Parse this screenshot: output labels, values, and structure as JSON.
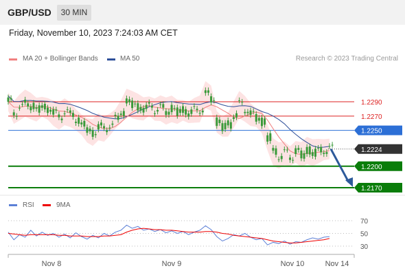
{
  "header": {
    "symbol": "GBP/USD",
    "timeframe": "30 MIN"
  },
  "datetime": "Friday, November 10, 2023 7:24:03 AM CET",
  "legend": {
    "ma20_label": "MA 20 + Bollinger Bands",
    "ma50_label": "MA 50",
    "credit": "Research © 2023 Trading Central"
  },
  "colors": {
    "ma20": "#f08080",
    "ma50": "#2e4f99",
    "bollinger_fill": "#fde0e0",
    "support": "#0a7d0a",
    "resistance_red": "#d22",
    "pivot_blue": "#2c6fd6",
    "current_label": "#333",
    "rsi": "#5b7fd6",
    "rsi_ma": "#e00",
    "arrow": "#2d5a9a",
    "candle": "#3a9a3a"
  },
  "chart_data": {
    "type": "candlestick",
    "symbol": "GBP/USD",
    "price_levels": [
      {
        "value": "1.2290",
        "kind": "resistance"
      },
      {
        "value": "1.2270",
        "kind": "resistance"
      },
      {
        "value": "1.2250",
        "kind": "pivot"
      },
      {
        "value": "1.2224",
        "kind": "current"
      },
      {
        "value": "1.2200",
        "kind": "support"
      },
      {
        "value": "1.2170",
        "kind": "support"
      }
    ],
    "ylim": [
      1.216,
      1.231
    ],
    "x_labels": [
      "Nov 8",
      "Nov 9",
      "Nov 10",
      "Nov 14"
    ],
    "close_path": [
      1.229,
      1.2275,
      1.2282,
      1.2288,
      1.2284,
      1.2279,
      1.2283,
      1.228,
      1.2274,
      1.227,
      1.2276,
      1.2272,
      1.2265,
      1.2258,
      1.225,
      1.2247,
      1.2255,
      1.2252,
      1.2258,
      1.2266,
      1.2276,
      1.229,
      1.2286,
      1.2283,
      1.228,
      1.2284,
      1.2279,
      1.2281,
      1.2277,
      1.228,
      1.2276,
      1.2278,
      1.2275,
      1.2278,
      1.228,
      1.23,
      1.2295,
      1.2262,
      1.2255,
      1.2258,
      1.2272,
      1.2286,
      1.228,
      1.2272,
      1.2268,
      1.2262,
      1.224,
      1.222,
      1.2215,
      1.2218,
      1.2214,
      1.222,
      1.2216,
      1.2222,
      1.2219,
      1.2221,
      1.2223,
      1.2224
    ],
    "rsi": {
      "label": "RSI",
      "ma_label": "9MA",
      "levels": [
        70,
        50,
        30
      ],
      "rsi_values": [
        52,
        40,
        48,
        44,
        55,
        46,
        52,
        47,
        50,
        44,
        49,
        43,
        51,
        45,
        41,
        47,
        43,
        50,
        46,
        52,
        55,
        63,
        58,
        61,
        55,
        57,
        53,
        56,
        51,
        54,
        50,
        53,
        48,
        52,
        55,
        62,
        56,
        45,
        38,
        42,
        48,
        46,
        50,
        44,
        40,
        42,
        32,
        36,
        34,
        38,
        33,
        37,
        36,
        40,
        43,
        41,
        44,
        45
      ],
      "ma_values": [
        50,
        49,
        48,
        47,
        48,
        48,
        48,
        48,
        48,
        47,
        47,
        46,
        46,
        46,
        45,
        45,
        45,
        46,
        46,
        47,
        48,
        52,
        55,
        57,
        58,
        57,
        56,
        56,
        55,
        55,
        54,
        53,
        52,
        52,
        52,
        53,
        53,
        52,
        50,
        49,
        47,
        46,
        45,
        44,
        43,
        42,
        40,
        38,
        37,
        36,
        35,
        35,
        36,
        37,
        38,
        39,
        40,
        42
      ]
    }
  }
}
